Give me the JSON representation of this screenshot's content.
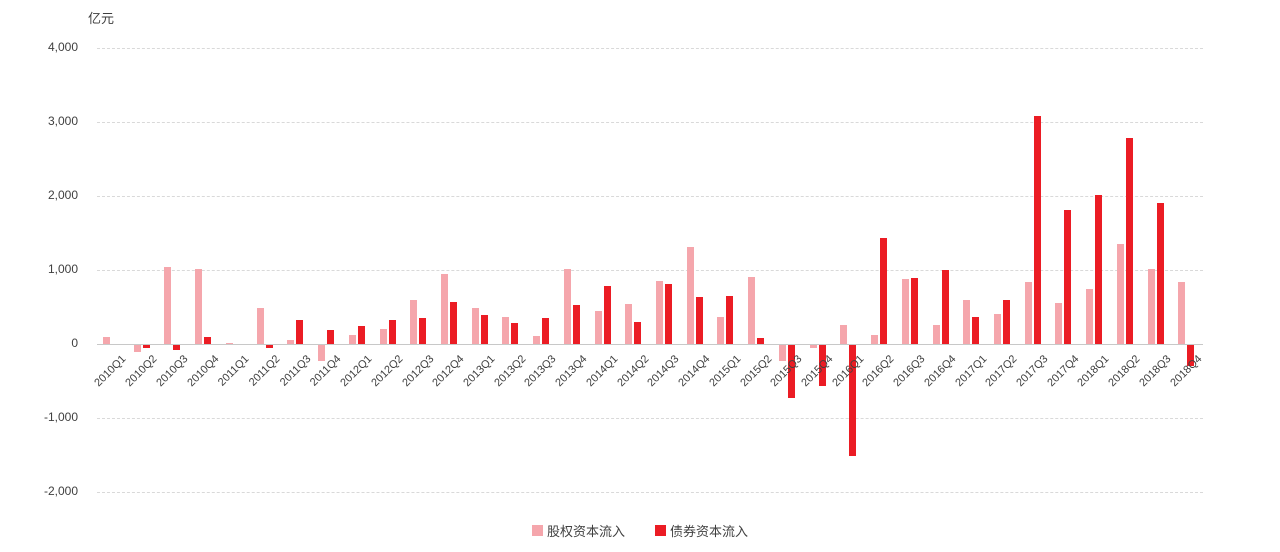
{
  "chart_data": {
    "type": "bar",
    "title": "",
    "unit": "亿元",
    "categories": [
      "2010Q1",
      "2010Q2",
      "2010Q3",
      "2010Q4",
      "2011Q1",
      "2011Q2",
      "2011Q3",
      "2011Q4",
      "2012Q1",
      "2012Q2",
      "2012Q3",
      "2012Q4",
      "2013Q1",
      "2013Q2",
      "2013Q3",
      "2013Q4",
      "2014Q1",
      "2014Q2",
      "2014Q3",
      "2014Q4",
      "2015Q1",
      "2015Q2",
      "2015Q3",
      "2015Q4",
      "2016Q1",
      "2016Q2",
      "2016Q3",
      "2016Q4",
      "2017Q1",
      "2017Q2",
      "2017Q3",
      "2017Q4",
      "2018Q1",
      "2018Q2",
      "2018Q3",
      "2018Q4"
    ],
    "series": [
      {
        "name": "股权资本流入",
        "color": "#F5A6AC",
        "values": [
          100,
          -90,
          1040,
          1020,
          15,
          480,
          50,
          -215,
          120,
          200,
          590,
          950,
          480,
          370,
          110,
          1020,
          450,
          540,
          850,
          1310,
          370,
          900,
          -220,
          -40,
          260,
          120,
          880,
          260,
          600,
          400,
          840,
          550,
          750,
          1350,
          1020,
          840
        ]
      },
      {
        "name": "债券资本流入",
        "color": "#EB1C24",
        "values": [
          0,
          -45,
          -70,
          90,
          0,
          -35,
          320,
          190,
          250,
          330,
          350,
          570,
          390,
          280,
          350,
          530,
          790,
          300,
          810,
          630,
          650,
          80,
          -710,
          -550,
          -1500,
          1430,
          890,
          1000,
          370,
          600,
          3080,
          1810,
          2020,
          2780,
          1900,
          -280
        ]
      }
    ],
    "ylim": [
      -2000,
      4000
    ],
    "y_ticks": [
      4000,
      3000,
      2000,
      1000,
      0,
      -1000,
      -2000
    ],
    "y_tick_labels": [
      "4,000",
      "3,000",
      "2,000",
      "1,000",
      "0",
      "-1,000",
      "-2,000"
    ],
    "xlabel": "",
    "ylabel": "亿元",
    "grid": "horizontal-dashed",
    "legend_position": "bottom-center",
    "colors": {
      "gridline": "#d9d9d9",
      "zero_axis": "#c8c8c8",
      "tick_text": "#3f3f3f",
      "background": "#ffffff"
    }
  }
}
